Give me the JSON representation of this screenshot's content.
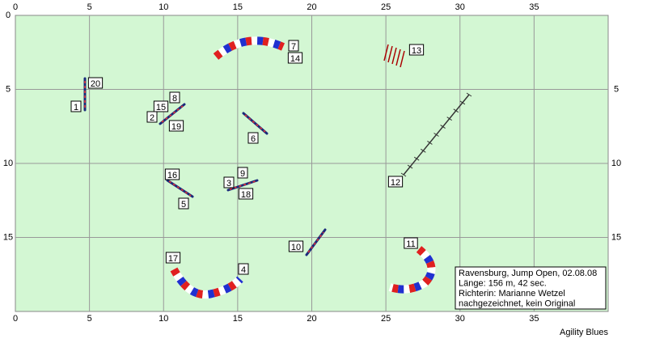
{
  "axes": {
    "xticks": [
      0,
      5,
      10,
      15,
      20,
      25,
      30,
      35
    ],
    "yticks": [
      0,
      5,
      10,
      15
    ],
    "xlim": [
      0,
      40
    ],
    "ylim": [
      0,
      20
    ]
  },
  "obstacles": [
    "1",
    "2",
    "15",
    "8",
    "19",
    "20",
    "7",
    "14",
    "13",
    "6",
    "12",
    "16",
    "9",
    "3",
    "18",
    "5",
    "10",
    "11",
    "17",
    "4"
  ],
  "info": [
    "Ravensburg, Jump Open, 02.08.08",
    "Länge: 156 m, 42 sec.",
    "Richterin: Marianne Wetzel",
    "nachgezeichnet, kein Original"
  ],
  "footer": "Agility Blues"
}
